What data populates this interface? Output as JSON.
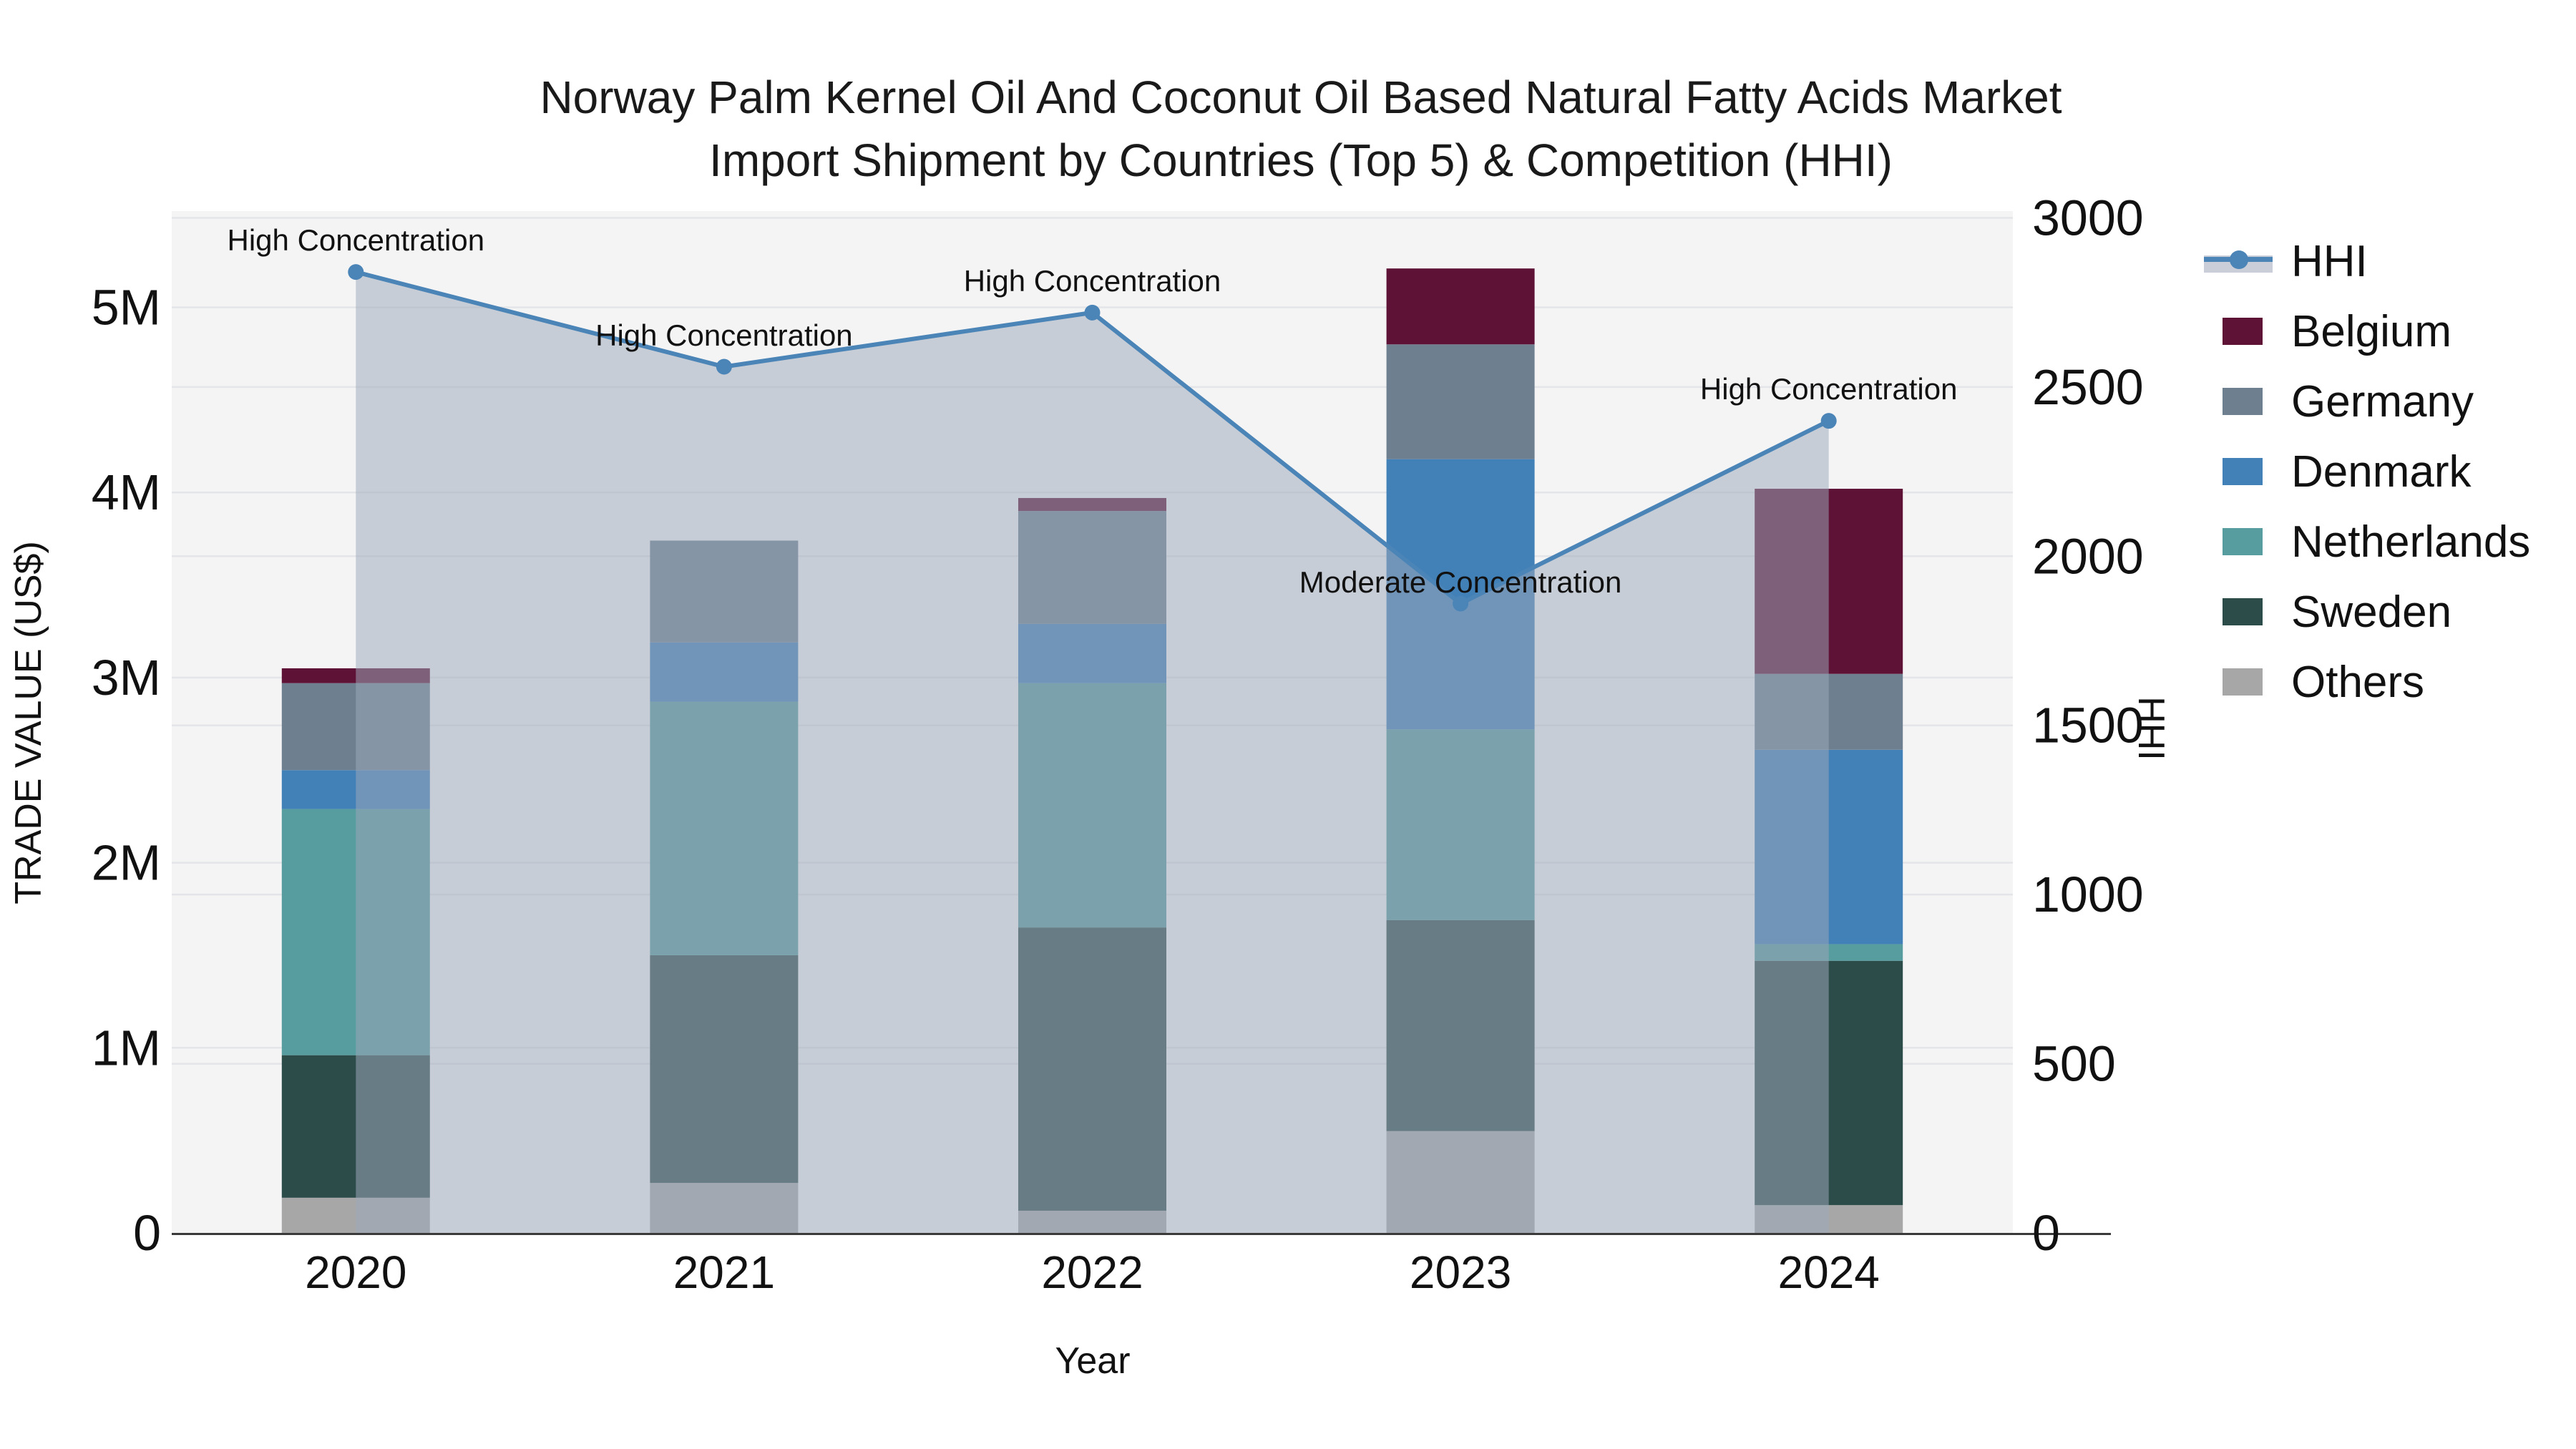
{
  "title": {
    "line1": "Norway Palm Kernel Oil And Coconut Oil Based Natural Fatty Acids Market",
    "line2": "Import Shipment by Countries (Top 5) & Competition (HHI)"
  },
  "axis_titles": {
    "y_left": "TRADE VALUE (US$)",
    "y_right": "HHI",
    "x": "Year"
  },
  "colors": {
    "hhi_line": "#4b84b6",
    "hhi_area": "rgba(158,168,186,0.52)",
    "hhi_band": "#c9ced8",
    "plot_bg": "#f4f4f5",
    "gridline": "#e4e5e8",
    "spine": "#3a3a3a",
    "belgium": "#5e1236",
    "germany": "#6e8090",
    "denmark": "#4281b8",
    "netherlands": "#579c9e",
    "sweden": "#2c4c49",
    "others": "#a7a7a7"
  },
  "legend": {
    "items": [
      {
        "label": "HHI",
        "color": "#4b84b6"
      },
      {
        "label": "Belgium",
        "color": "#5e1236"
      },
      {
        "label": "Germany",
        "color": "#6e8090"
      },
      {
        "label": "Denmark",
        "color": "#4281b8"
      },
      {
        "label": "Netherlands",
        "color": "#579c9e"
      },
      {
        "label": "Sweden",
        "color": "#2c4c49"
      },
      {
        "label": "Others",
        "color": "#a7a7a7"
      }
    ]
  },
  "chart_data": {
    "type": [
      "bar",
      "line"
    ],
    "title": "Norway Palm Kernel Oil And Coconut Oil Based Natural Fatty Acids Market Import Shipment by Countries (Top 5) & Competition (HHI)",
    "xlabel": "Year",
    "ylabel": "TRADE VALUE (US$)",
    "y2label": "HHI",
    "categories": [
      "2020",
      "2021",
      "2022",
      "2023",
      "2024"
    ],
    "bar_stack_order_bottom_to_top": [
      "Others",
      "Sweden",
      "Netherlands",
      "Denmark",
      "Germany",
      "Belgium"
    ],
    "series": [
      {
        "name": "Others",
        "color": "#a7a7a7",
        "values": [
          190000,
          270000,
          120000,
          550000,
          150000
        ]
      },
      {
        "name": "Sweden",
        "color": "#2c4c49",
        "values": [
          770000,
          1230000,
          1530000,
          1140000,
          1320000
        ]
      },
      {
        "name": "Netherlands",
        "color": "#579c9e",
        "values": [
          1330000,
          1370000,
          1320000,
          1030000,
          90000
        ]
      },
      {
        "name": "Denmark",
        "color": "#4281b8",
        "values": [
          210000,
          320000,
          320000,
          1460000,
          1050000
        ]
      },
      {
        "name": "Germany",
        "color": "#6e8090",
        "values": [
          470000,
          550000,
          610000,
          620000,
          410000
        ]
      },
      {
        "name": "Belgium",
        "color": "#5e1236",
        "values": [
          80000,
          0,
          70000,
          410000,
          1000000
        ]
      }
    ],
    "bar_totals": [
      3050000,
      3740000,
      3970000,
      5210000,
      4020000
    ],
    "line_series": {
      "name": "HHI",
      "axis": "right",
      "color": "#4b84b6",
      "area_fill": "rgba(158,168,186,0.52)",
      "values": [
        2840,
        2560,
        2720,
        1860,
        2400
      ]
    },
    "annotations": [
      {
        "category": "2020",
        "text": "High Concentration"
      },
      {
        "category": "2021",
        "text": "High Concentration"
      },
      {
        "category": "2022",
        "text": "High Concentration"
      },
      {
        "category": "2023",
        "text": "Moderate Concentration"
      },
      {
        "category": "2024",
        "text": "High Concentration"
      }
    ],
    "y_axis": {
      "ticks": [
        "0",
        "1M",
        "2M",
        "3M",
        "4M",
        "5M"
      ],
      "tick_values": [
        0,
        1000000,
        2000000,
        3000000,
        4000000,
        5000000
      ],
      "lim": [
        0,
        5520000
      ],
      "grid": true
    },
    "y2_axis": {
      "ticks": [
        "0",
        "500",
        "1000",
        "1500",
        "2000",
        "2500",
        "3000"
      ],
      "tick_values": [
        0,
        500,
        1000,
        1500,
        2000,
        2500,
        3000
      ],
      "lim": [
        0,
        3020
      ],
      "grid": true
    },
    "legend_position": "right"
  }
}
